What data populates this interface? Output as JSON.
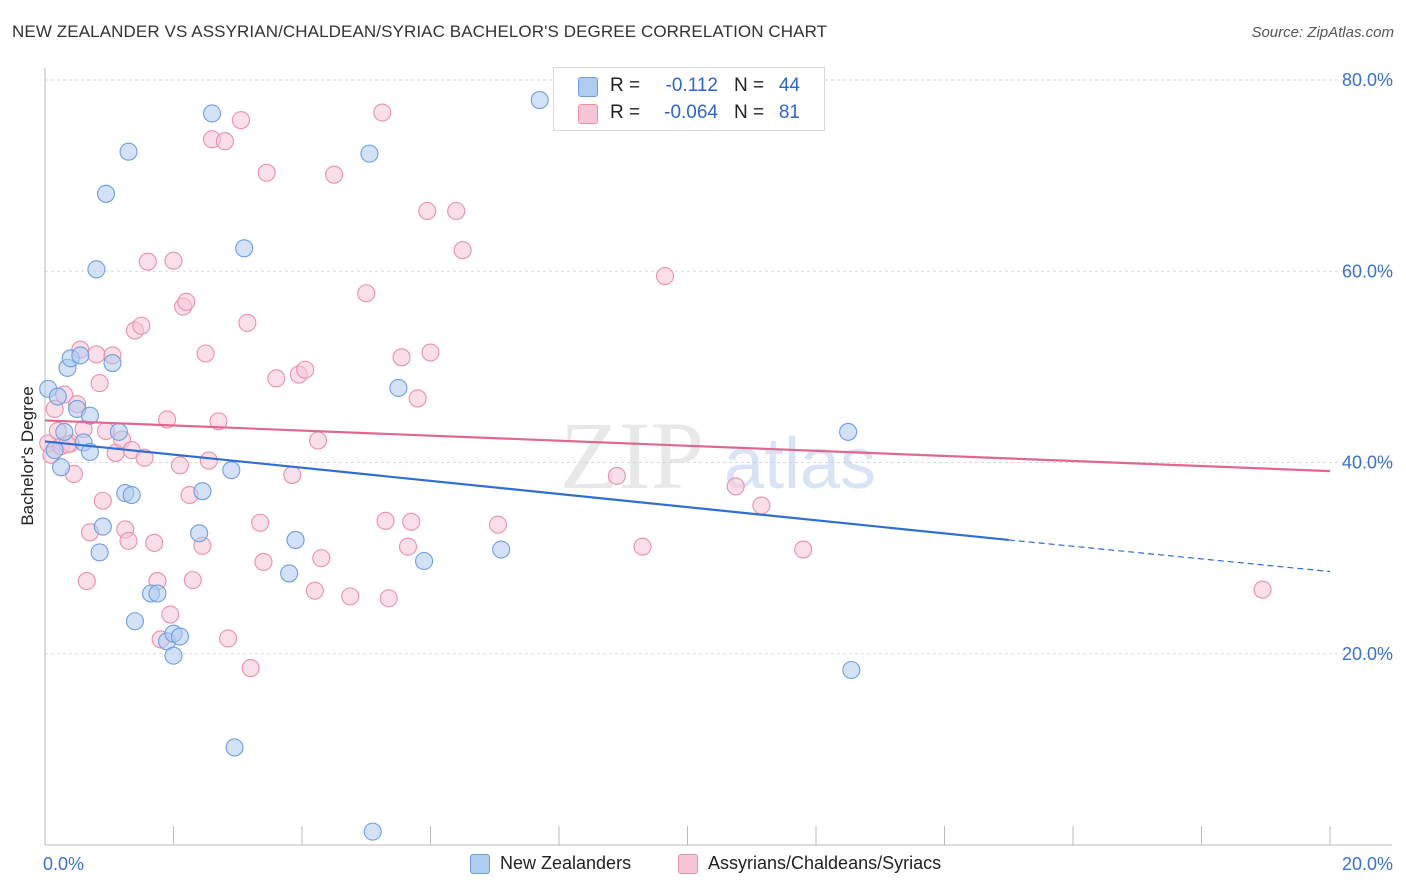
{
  "title": "NEW ZEALANDER VS ASSYRIAN/CHALDEAN/SYRIAC BACHELOR'S DEGREE CORRELATION CHART",
  "source": "Source: ZipAtlas.com",
  "watermark": {
    "zip": "ZIP",
    "atlas": "atlas"
  },
  "legend_stats": [
    {
      "r_label": "R =",
      "r_value": "-0.112",
      "n_label": "N =",
      "n_value": "44",
      "color": "#aecbf0",
      "border": "#6e9de0"
    },
    {
      "r_label": "R =",
      "r_value": "-0.064",
      "n_label": "N =",
      "n_value": "81",
      "color": "#f8c5d5",
      "border": "#e890ac"
    }
  ],
  "bottom_legend": [
    {
      "label": "New Zealanders",
      "color": "#aecbf0",
      "border": "#6e9de0"
    },
    {
      "label": "Assyrians/Chaldeans/Syriacs",
      "color": "#f8c5d5",
      "border": "#e890ac"
    }
  ],
  "chart_data": {
    "type": "scatter",
    "title": "NEW ZEALANDER VS ASSYRIAN/CHALDEAN/SYRIAC BACHELOR'S DEGREE CORRELATION CHART",
    "xlabel": "",
    "ylabel": "Bachelor's Degree",
    "xlim": [
      0,
      20
    ],
    "ylim": [
      0,
      80
    ],
    "x_tick_labels": [
      "0.0%",
      "20.0%"
    ],
    "y_ticks": [
      20,
      40,
      60,
      80
    ],
    "y_tick_labels": [
      "20.0%",
      "40.0%",
      "60.0%",
      "80.0%"
    ],
    "grid": true,
    "series": [
      {
        "name": "New Zealanders",
        "color": "#6e9de0",
        "fill": "#aecbf0",
        "line_color": "#2f6fd0",
        "trend": {
          "x0": 0.0,
          "y0": 42.2,
          "x1": 15.0,
          "y1": 31.9,
          "dash_x1": 20.0,
          "dash_y1": 28.6
        },
        "points": [
          [
            0.05,
            47.7
          ],
          [
            0.2,
            46.9
          ],
          [
            0.15,
            41.3
          ],
          [
            0.25,
            39.5
          ],
          [
            0.3,
            43.2
          ],
          [
            0.35,
            49.9
          ],
          [
            0.4,
            50.9
          ],
          [
            0.5,
            45.6
          ],
          [
            0.55,
            51.2
          ],
          [
            0.7,
            44.9
          ],
          [
            0.6,
            42.1
          ],
          [
            0.7,
            41.1
          ],
          [
            0.85,
            30.6
          ],
          [
            0.9,
            33.3
          ],
          [
            1.05,
            50.4
          ],
          [
            1.15,
            43.2
          ],
          [
            1.25,
            36.8
          ],
          [
            1.35,
            36.6
          ],
          [
            1.4,
            23.4
          ],
          [
            1.65,
            26.3
          ],
          [
            1.75,
            26.3
          ],
          [
            1.9,
            21.3
          ],
          [
            2.0,
            19.8
          ],
          [
            2.0,
            22.1
          ],
          [
            2.1,
            21.8
          ],
          [
            2.4,
            32.6
          ],
          [
            2.45,
            37.0
          ],
          [
            2.9,
            39.2
          ],
          [
            2.95,
            10.2
          ],
          [
            0.8,
            60.2
          ],
          [
            0.95,
            68.1
          ],
          [
            1.3,
            72.5
          ],
          [
            2.6,
            76.5
          ],
          [
            3.1,
            62.4
          ],
          [
            3.8,
            28.4
          ],
          [
            3.9,
            31.9
          ],
          [
            5.05,
            72.3
          ],
          [
            5.1,
            1.4
          ],
          [
            5.5,
            47.8
          ],
          [
            5.9,
            29.7
          ],
          [
            7.1,
            30.9
          ],
          [
            7.7,
            77.9
          ],
          [
            12.5,
            43.2
          ],
          [
            12.55,
            18.3
          ]
        ]
      },
      {
        "name": "Assyrians/Chaldeans/Syriacs",
        "color": "#e890ac",
        "fill": "#f8c5d5",
        "line_color": "#e0688f",
        "trend": {
          "x0": 0.0,
          "y0": 44.4,
          "x1": 20.0,
          "y1": 39.1
        },
        "points": [
          [
            0.05,
            42.0
          ],
          [
            0.1,
            40.8
          ],
          [
            0.15,
            45.6
          ],
          [
            0.2,
            43.3
          ],
          [
            0.25,
            41.7
          ],
          [
            0.3,
            47.1
          ],
          [
            0.4,
            42.0
          ],
          [
            0.45,
            38.8
          ],
          [
            0.5,
            46.1
          ],
          [
            0.55,
            51.8
          ],
          [
            0.6,
            43.5
          ],
          [
            0.7,
            32.7
          ],
          [
            0.65,
            27.6
          ],
          [
            0.8,
            51.3
          ],
          [
            0.85,
            48.3
          ],
          [
            0.9,
            36.0
          ],
          [
            0.95,
            43.3
          ],
          [
            1.05,
            51.2
          ],
          [
            1.1,
            41.0
          ],
          [
            1.2,
            42.4
          ],
          [
            1.25,
            33.0
          ],
          [
            1.3,
            31.8
          ],
          [
            1.35,
            41.3
          ],
          [
            1.4,
            53.8
          ],
          [
            1.5,
            54.3
          ],
          [
            1.55,
            40.5
          ],
          [
            1.6,
            61.0
          ],
          [
            1.7,
            31.6
          ],
          [
            1.75,
            27.6
          ],
          [
            1.8,
            21.5
          ],
          [
            1.9,
            44.5
          ],
          [
            1.95,
            24.1
          ],
          [
            2.0,
            61.1
          ],
          [
            2.1,
            39.7
          ],
          [
            2.15,
            56.3
          ],
          [
            2.2,
            56.8
          ],
          [
            2.25,
            36.6
          ],
          [
            2.3,
            27.7
          ],
          [
            2.45,
            31.3
          ],
          [
            2.5,
            51.4
          ],
          [
            2.55,
            40.2
          ],
          [
            2.6,
            73.8
          ],
          [
            2.7,
            44.3
          ],
          [
            2.8,
            73.6
          ],
          [
            2.85,
            21.6
          ],
          [
            3.05,
            75.8
          ],
          [
            3.15,
            54.6
          ],
          [
            3.2,
            18.5
          ],
          [
            3.35,
            33.7
          ],
          [
            3.4,
            29.6
          ],
          [
            3.45,
            70.3
          ],
          [
            3.6,
            48.8
          ],
          [
            3.85,
            38.7
          ],
          [
            3.95,
            49.2
          ],
          [
            4.05,
            49.7
          ],
          [
            4.2,
            26.6
          ],
          [
            4.25,
            42.3
          ],
          [
            4.3,
            30.0
          ],
          [
            4.5,
            70.1
          ],
          [
            4.75,
            26.0
          ],
          [
            5.0,
            57.7
          ],
          [
            5.25,
            76.6
          ],
          [
            5.3,
            33.9
          ],
          [
            5.35,
            25.8
          ],
          [
            5.55,
            51.0
          ],
          [
            5.65,
            31.2
          ],
          [
            5.7,
            33.8
          ],
          [
            5.8,
            46.7
          ],
          [
            5.95,
            66.3
          ],
          [
            6.0,
            51.5
          ],
          [
            6.4,
            66.3
          ],
          [
            6.5,
            62.2
          ],
          [
            7.05,
            33.5
          ],
          [
            8.9,
            38.6
          ],
          [
            9.3,
            31.2
          ],
          [
            9.65,
            59.5
          ],
          [
            10.75,
            37.5
          ],
          [
            11.15,
            35.5
          ],
          [
            11.8,
            30.9
          ],
          [
            18.95,
            26.7
          ],
          [
            0.35,
            41.9
          ]
        ]
      }
    ]
  }
}
